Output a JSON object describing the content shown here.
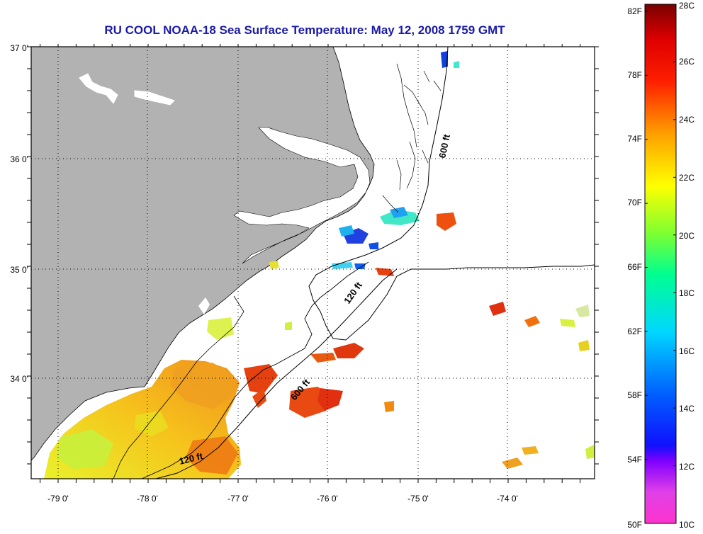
{
  "title": "RU COOL  NOAA-18  Sea Surface Temperature:  May 12, 2008 1759 GMT",
  "map": {
    "lon_labels": [
      "-79 0'",
      "-78 0'",
      "-77 0'",
      "-76 0'",
      "-75 0'",
      "-74 0'"
    ],
    "lat_labels": [
      "37 0'",
      "36 0'",
      "35 0'",
      "34 0'"
    ],
    "contour_labels": [
      "600 ft",
      "120 ft",
      "600 ft",
      "120 ft"
    ],
    "colors": {
      "land": "#b2b2b2",
      "water": "#ffffff",
      "grid": "#000000",
      "title": "#1a1aa8"
    }
  },
  "colorbar": {
    "fahrenheit_labels": [
      "82F",
      "78F",
      "74F",
      "70F",
      "66F",
      "62F",
      "58F",
      "54F",
      "50F"
    ],
    "celsius_labels": [
      "28C",
      "26C",
      "24C",
      "22C",
      "20C",
      "18C",
      "16C",
      "14C",
      "12C",
      "10C"
    ],
    "range_c": [
      10,
      28
    ]
  }
}
